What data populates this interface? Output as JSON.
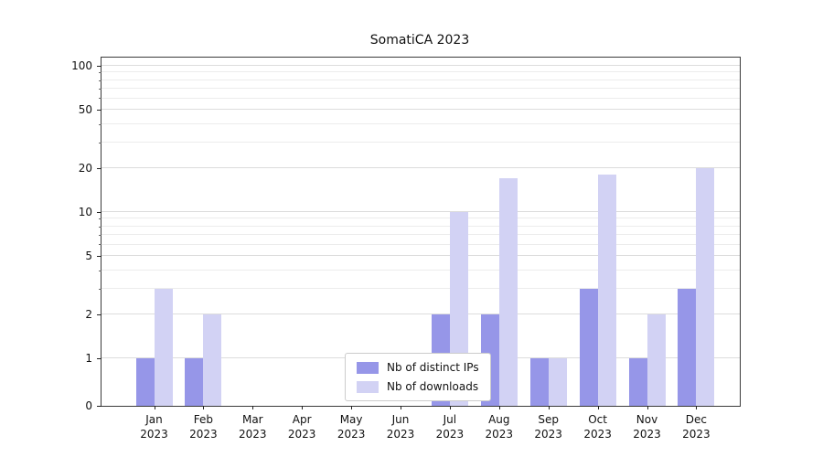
{
  "chart_data": {
    "type": "bar",
    "title": "SomatiCA 2023",
    "xlabel": "",
    "ylabel": "",
    "scale": "symlog",
    "ylim": [
      0,
      112
    ],
    "grid": "horizontal",
    "yticks": [
      0,
      1,
      2,
      5,
      10,
      20,
      50,
      100
    ],
    "categories": [
      "Jan 2023",
      "Feb 2023",
      "Mar 2023",
      "Apr 2023",
      "May 2023",
      "Jun 2023",
      "Jul 2023",
      "Aug 2023",
      "Sep 2023",
      "Oct 2023",
      "Nov 2023",
      "Dec 2023"
    ],
    "series": [
      {
        "name": "Nb of distinct IPs",
        "color": "#9696e8",
        "values": [
          1,
          1,
          0,
          0,
          0,
          0,
          2,
          2,
          1,
          3,
          1,
          3
        ]
      },
      {
        "name": "Nb of downloads",
        "color": "#d2d2f4",
        "values": [
          3,
          2,
          0,
          0,
          0,
          0,
          10,
          17,
          1,
          18,
          2,
          20
        ]
      }
    ],
    "legend_position": "lower center"
  }
}
